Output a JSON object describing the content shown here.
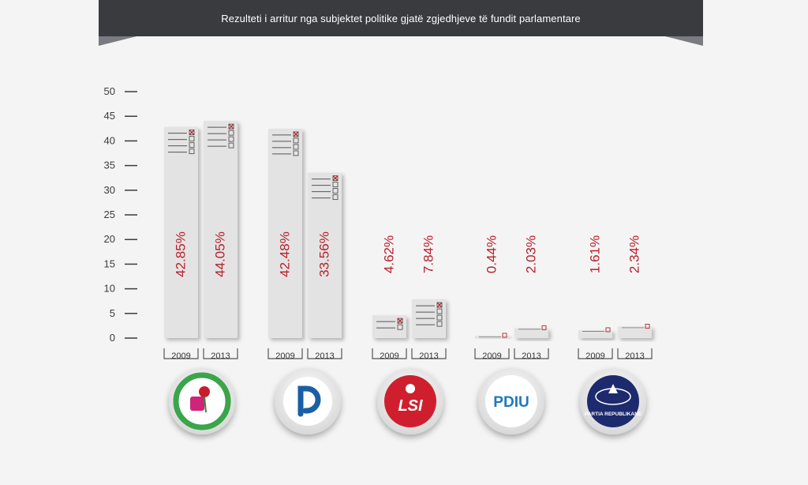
{
  "header": {
    "title": "Rezulteti i arritur nga subjektet politike gjatë zgjedhjeve të fundit parlamentare"
  },
  "colors": {
    "ribbon": "#3a3b3f",
    "bar": "#e3e3e3",
    "value_label": "#b8202b",
    "axis_text": "#3a3b3f"
  },
  "chart_data": {
    "type": "bar",
    "title": "Rezulteti i arritur nga subjektet politike gjatë zgjedhjeve të fundit parlamentare",
    "y_ticks": [
      0,
      5,
      10,
      15,
      20,
      25,
      30,
      35,
      40,
      45,
      50
    ],
    "ylim": [
      0,
      50
    ],
    "grid": false,
    "legend": "none",
    "categories": [
      "2009",
      "2013"
    ],
    "groups": [
      {
        "party": "PS",
        "logo": "ps-rose-fist-logo",
        "values": [
          42.85,
          44.05
        ],
        "labels": [
          "42.85%",
          "44.05%"
        ]
      },
      {
        "party": "PD",
        "logo": "pd-logo",
        "values": [
          42.48,
          33.56
        ],
        "labels": [
          "42.48%",
          "33.56%"
        ]
      },
      {
        "party": "LSI",
        "logo_text": "LSI",
        "logo": "lsi-rose-logo",
        "values": [
          4.62,
          7.84
        ],
        "labels": [
          "4.62%",
          "7.84%"
        ]
      },
      {
        "party": "PDIU",
        "logo_text": "PDIU",
        "logo": "pdiu-logo",
        "values": [
          0.44,
          2.03
        ],
        "labels": [
          "0.44%",
          "2.03%"
        ]
      },
      {
        "party": "PR",
        "logo_text": "PARTIA REPUBLIKANE",
        "logo": "pr-eagle-logo",
        "values": [
          1.61,
          2.34
        ],
        "labels": [
          "1.61%",
          "2.34%"
        ]
      }
    ]
  }
}
